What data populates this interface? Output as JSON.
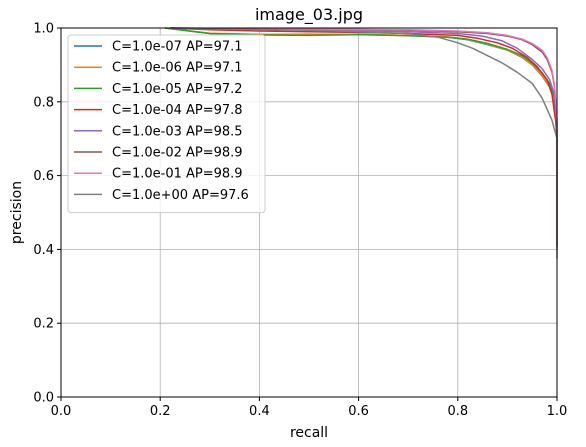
{
  "chart_data": {
    "type": "line",
    "title": "image_03.jpg",
    "xlabel": "recall",
    "ylabel": "precision",
    "xlim": [
      0,
      1
    ],
    "ylim": [
      0,
      1
    ],
    "xticks": [
      "0.0",
      "0.2",
      "0.4",
      "0.6",
      "0.8",
      "1.0"
    ],
    "yticks": [
      "0.0",
      "0.2",
      "0.4",
      "0.6",
      "0.8",
      "1.0"
    ],
    "grid": true,
    "legend_position": "top-left",
    "series": [
      {
        "name": "C=1.0e-07 AP=97.1",
        "color": "#1f77b4",
        "x": [
          0.21,
          0.3,
          0.4,
          0.5,
          0.6,
          0.7,
          0.78,
          0.82,
          0.86,
          0.9,
          0.93,
          0.95,
          0.97,
          0.985,
          0.995,
          1.0,
          1.0
        ],
        "y": [
          1.0,
          0.985,
          0.982,
          0.983,
          0.982,
          0.98,
          0.975,
          0.968,
          0.955,
          0.94,
          0.92,
          0.9,
          0.87,
          0.84,
          0.8,
          0.7,
          0.42
        ]
      },
      {
        "name": "C=1.0e-06 AP=97.1",
        "color": "#ff7f0e",
        "x": [
          0.21,
          0.3,
          0.4,
          0.5,
          0.6,
          0.7,
          0.78,
          0.82,
          0.86,
          0.9,
          0.93,
          0.95,
          0.97,
          0.985,
          0.995,
          1.0,
          1.0
        ],
        "y": [
          1.0,
          0.986,
          0.983,
          0.982,
          0.983,
          0.98,
          0.976,
          0.969,
          0.956,
          0.94,
          0.922,
          0.9,
          0.872,
          0.842,
          0.8,
          0.7,
          0.41
        ]
      },
      {
        "name": "C=1.0e-05 AP=97.2",
        "color": "#2ca02c",
        "x": [
          0.21,
          0.3,
          0.4,
          0.5,
          0.6,
          0.7,
          0.78,
          0.82,
          0.86,
          0.9,
          0.93,
          0.95,
          0.97,
          0.985,
          0.995,
          1.0,
          1.0
        ],
        "y": [
          1.0,
          0.985,
          0.981,
          0.98,
          0.982,
          0.979,
          0.975,
          0.97,
          0.958,
          0.942,
          0.925,
          0.905,
          0.878,
          0.85,
          0.81,
          0.7,
          0.4
        ]
      },
      {
        "name": "C=1.0e-04 AP=97.8",
        "color": "#d62728",
        "x": [
          0.22,
          0.3,
          0.4,
          0.5,
          0.6,
          0.7,
          0.8,
          0.84,
          0.88,
          0.91,
          0.94,
          0.96,
          0.98,
          0.99,
          1.0,
          1.0
        ],
        "y": [
          1.0,
          0.995,
          0.992,
          0.99,
          0.988,
          0.985,
          0.98,
          0.972,
          0.96,
          0.945,
          0.92,
          0.895,
          0.86,
          0.82,
          0.72,
          0.42
        ]
      },
      {
        "name": "C=1.0e-03 AP=98.5",
        "color": "#9467bd",
        "x": [
          0.22,
          0.3,
          0.4,
          0.5,
          0.6,
          0.7,
          0.8,
          0.85,
          0.89,
          0.92,
          0.95,
          0.97,
          0.985,
          0.995,
          1.0,
          1.0
        ],
        "y": [
          1.0,
          0.998,
          0.996,
          0.995,
          0.993,
          0.99,
          0.985,
          0.978,
          0.965,
          0.945,
          0.915,
          0.89,
          0.86,
          0.82,
          0.72,
          0.42
        ]
      },
      {
        "name": "C=1.0e-02 AP=98.9",
        "color": "#8c564b",
        "x": [
          0.22,
          0.3,
          0.4,
          0.5,
          0.6,
          0.7,
          0.8,
          0.86,
          0.9,
          0.93,
          0.95,
          0.97,
          0.98,
          0.99,
          0.995,
          1.0,
          1.0
        ],
        "y": [
          1.0,
          0.999,
          0.998,
          0.997,
          0.996,
          0.994,
          0.99,
          0.985,
          0.978,
          0.968,
          0.955,
          0.935,
          0.915,
          0.88,
          0.84,
          0.74,
          0.41
        ]
      },
      {
        "name": "C=1.0e-01 AP=98.9",
        "color": "#e377c2",
        "x": [
          0.22,
          0.3,
          0.4,
          0.5,
          0.6,
          0.7,
          0.8,
          0.86,
          0.9,
          0.93,
          0.95,
          0.97,
          0.98,
          0.99,
          0.995,
          1.0,
          1.0
        ],
        "y": [
          1.0,
          0.999,
          0.998,
          0.997,
          0.996,
          0.995,
          0.992,
          0.987,
          0.98,
          0.97,
          0.958,
          0.94,
          0.92,
          0.885,
          0.845,
          0.75,
          0.42
        ]
      },
      {
        "name": "C=1.0e+00 AP=97.6",
        "color": "#7f7f7f",
        "x": [
          0.22,
          0.3,
          0.4,
          0.5,
          0.6,
          0.7,
          0.76,
          0.8,
          0.83,
          0.86,
          0.89,
          0.92,
          0.95,
          0.97,
          0.98,
          0.99,
          1.0,
          1.0
        ],
        "y": [
          1.0,
          0.998,
          0.996,
          0.994,
          0.99,
          0.985,
          0.975,
          0.96,
          0.945,
          0.925,
          0.905,
          0.88,
          0.85,
          0.81,
          0.78,
          0.75,
          0.7,
          0.375
        ]
      }
    ]
  }
}
